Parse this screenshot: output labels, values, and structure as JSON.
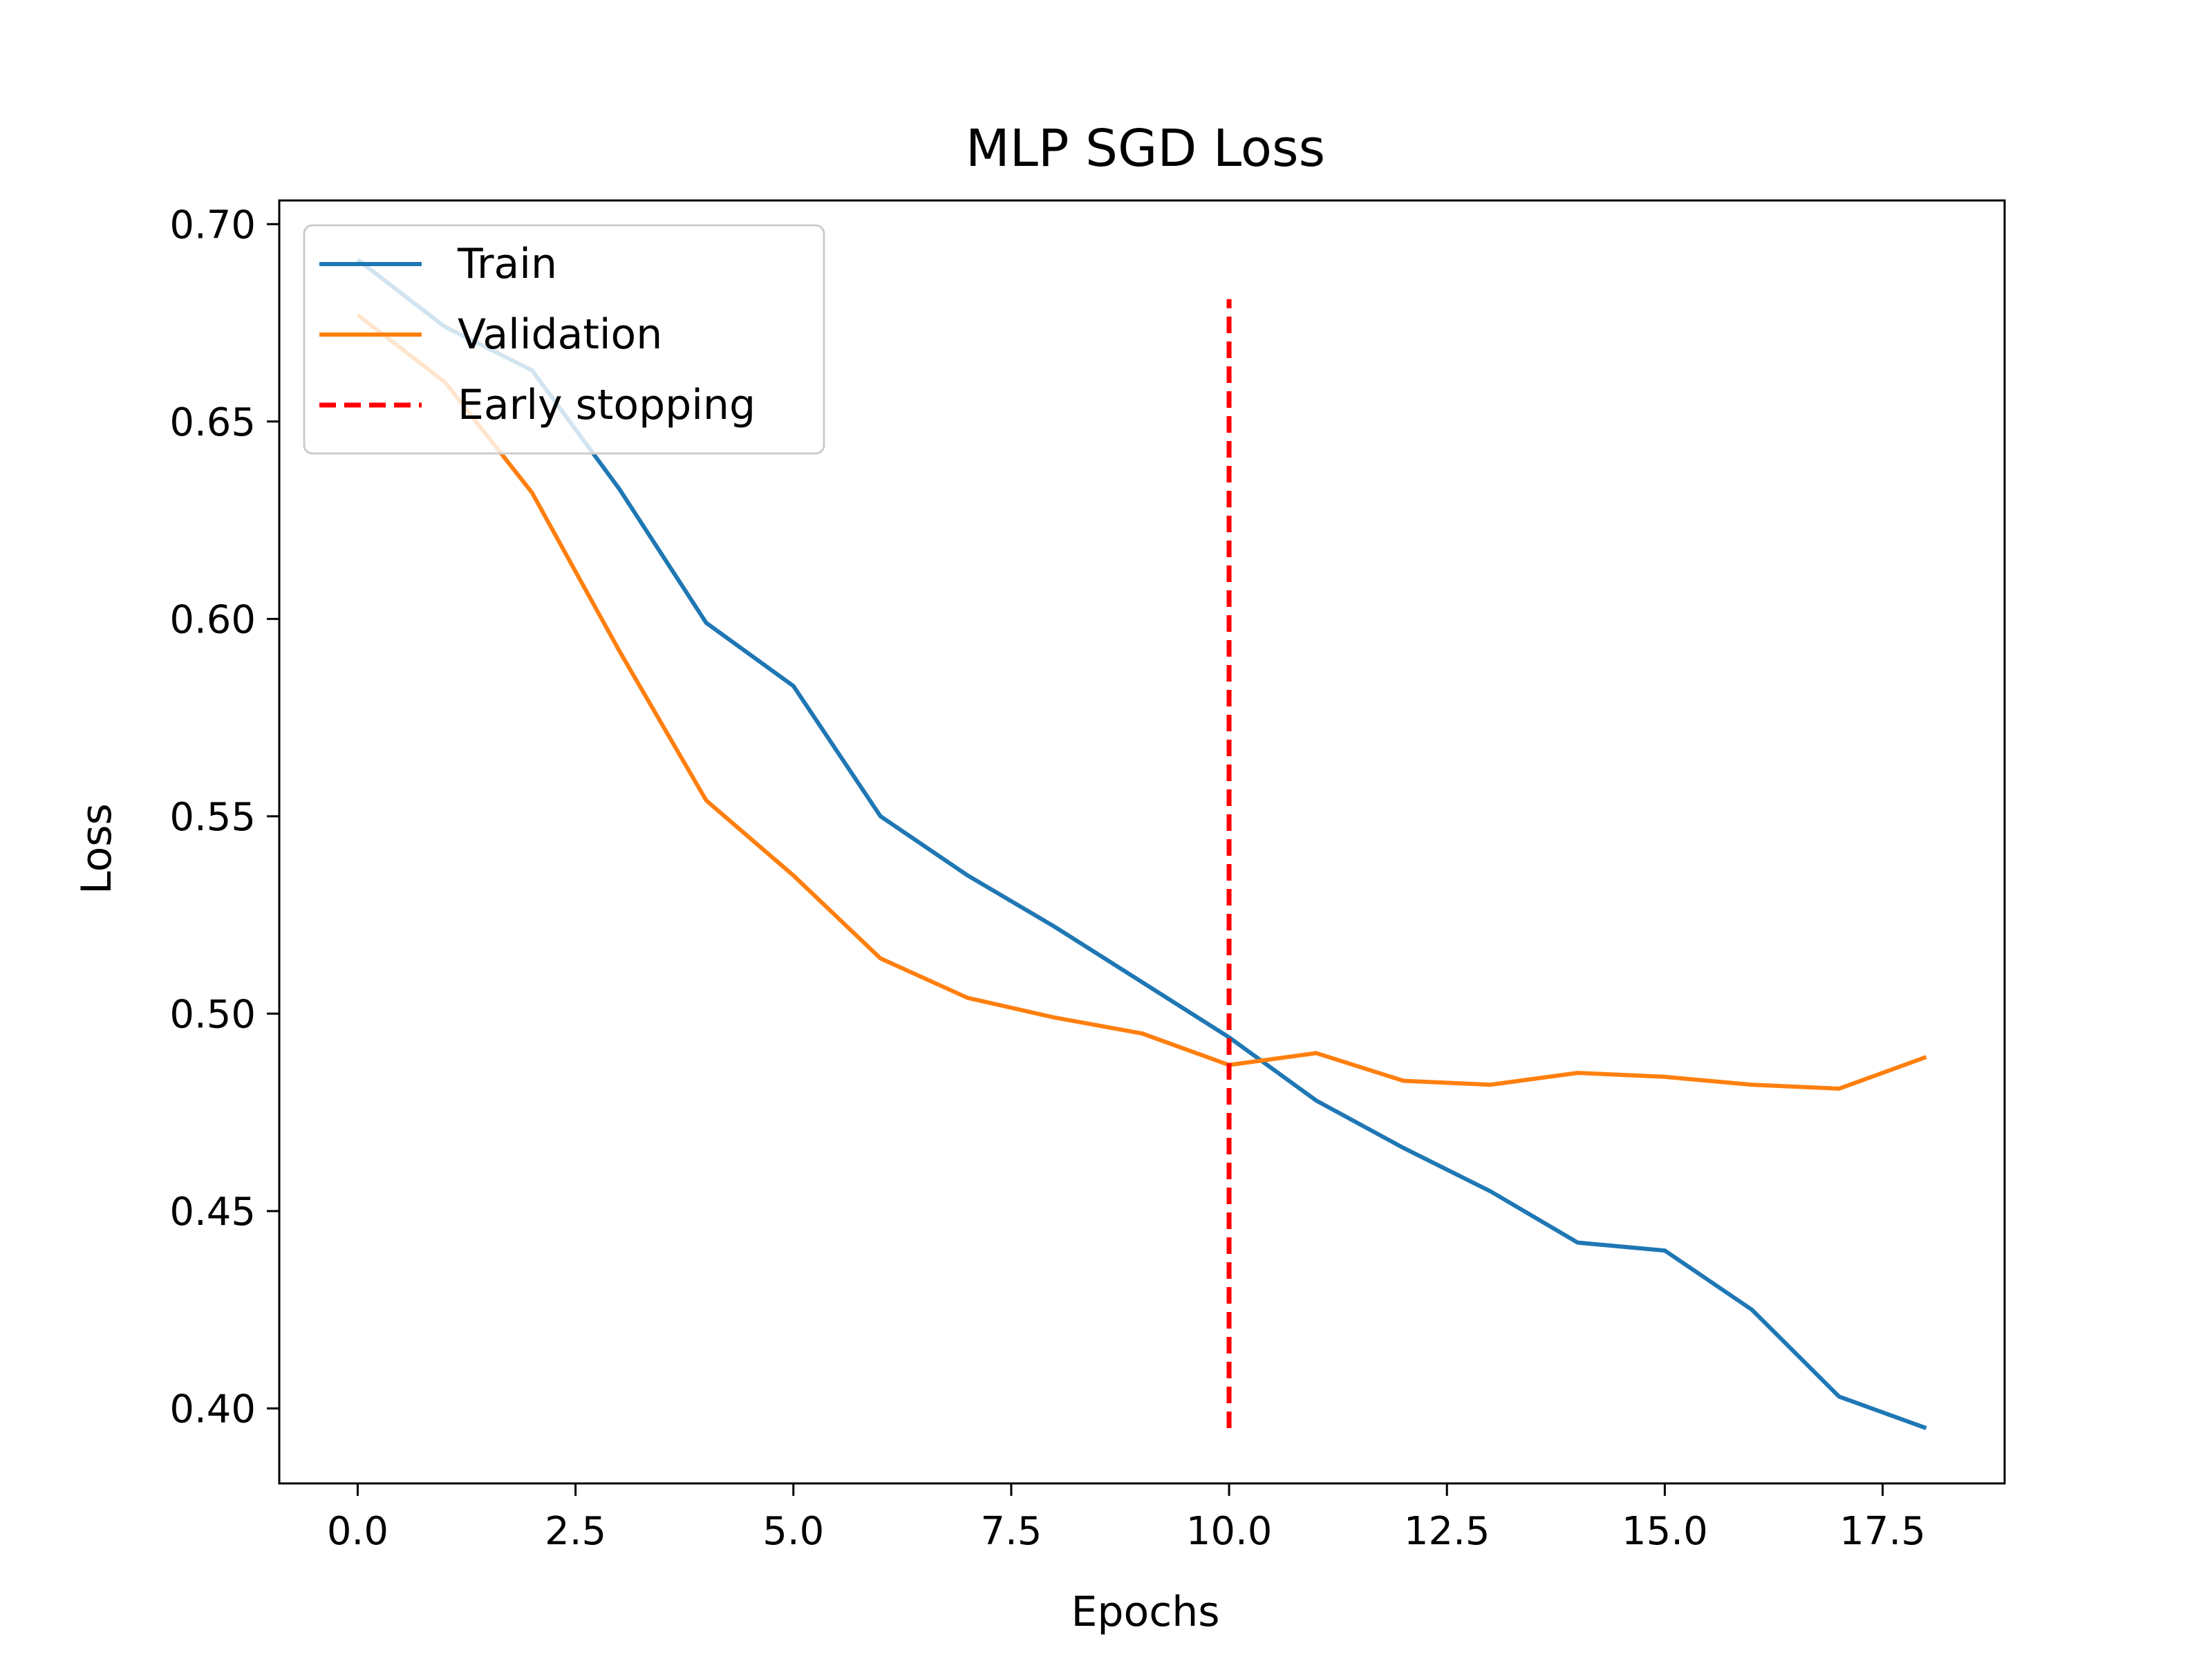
{
  "chart_data": {
    "type": "line",
    "title": "MLP SGD Loss",
    "xlabel": "Epochs",
    "ylabel": "Loss",
    "xlim": [
      -0.9,
      18.9
    ],
    "ylim": [
      0.381,
      0.706
    ],
    "xticks": [
      0.0,
      2.5,
      5.0,
      7.5,
      10.0,
      12.5,
      15.0,
      17.5
    ],
    "xtick_labels": [
      "0.0",
      "2.5",
      "5.0",
      "7.5",
      "10.0",
      "12.5",
      "15.0",
      "17.5"
    ],
    "yticks": [
      0.4,
      0.45,
      0.5,
      0.55,
      0.6,
      0.65,
      0.7
    ],
    "ytick_labels": [
      "0.40",
      "0.45",
      "0.50",
      "0.55",
      "0.60",
      "0.65",
      "0.70"
    ],
    "grid": false,
    "legend": "top-left",
    "series": [
      {
        "name": "Train",
        "color": "#1f77b4",
        "style": "solid",
        "x": [
          0,
          1,
          2,
          3,
          4,
          5,
          6,
          7,
          8,
          9,
          10,
          11,
          12,
          13,
          14,
          15,
          16,
          17,
          18
        ],
        "y": [
          0.691,
          0.674,
          0.663,
          0.633,
          0.599,
          0.583,
          0.55,
          0.535,
          0.522,
          0.508,
          0.494,
          0.478,
          0.466,
          0.455,
          0.442,
          0.44,
          0.425,
          0.403,
          0.395
        ]
      },
      {
        "name": "Validation",
        "color": "#ff7f0e",
        "style": "solid",
        "x": [
          0,
          1,
          2,
          3,
          4,
          5,
          6,
          7,
          8,
          9,
          10,
          11,
          12,
          13,
          14,
          15,
          16,
          17,
          18
        ],
        "y": [
          0.677,
          0.66,
          0.632,
          0.592,
          0.554,
          0.535,
          0.514,
          0.504,
          0.499,
          0.495,
          0.487,
          0.49,
          0.483,
          0.482,
          0.485,
          0.484,
          0.482,
          0.481,
          0.489
        ]
      }
    ],
    "vlines": [
      {
        "name": "Early stopping",
        "color": "#ff0000",
        "style": "dashed",
        "x": 10,
        "y_start": 0.395,
        "y_end": 0.681
      }
    ]
  }
}
